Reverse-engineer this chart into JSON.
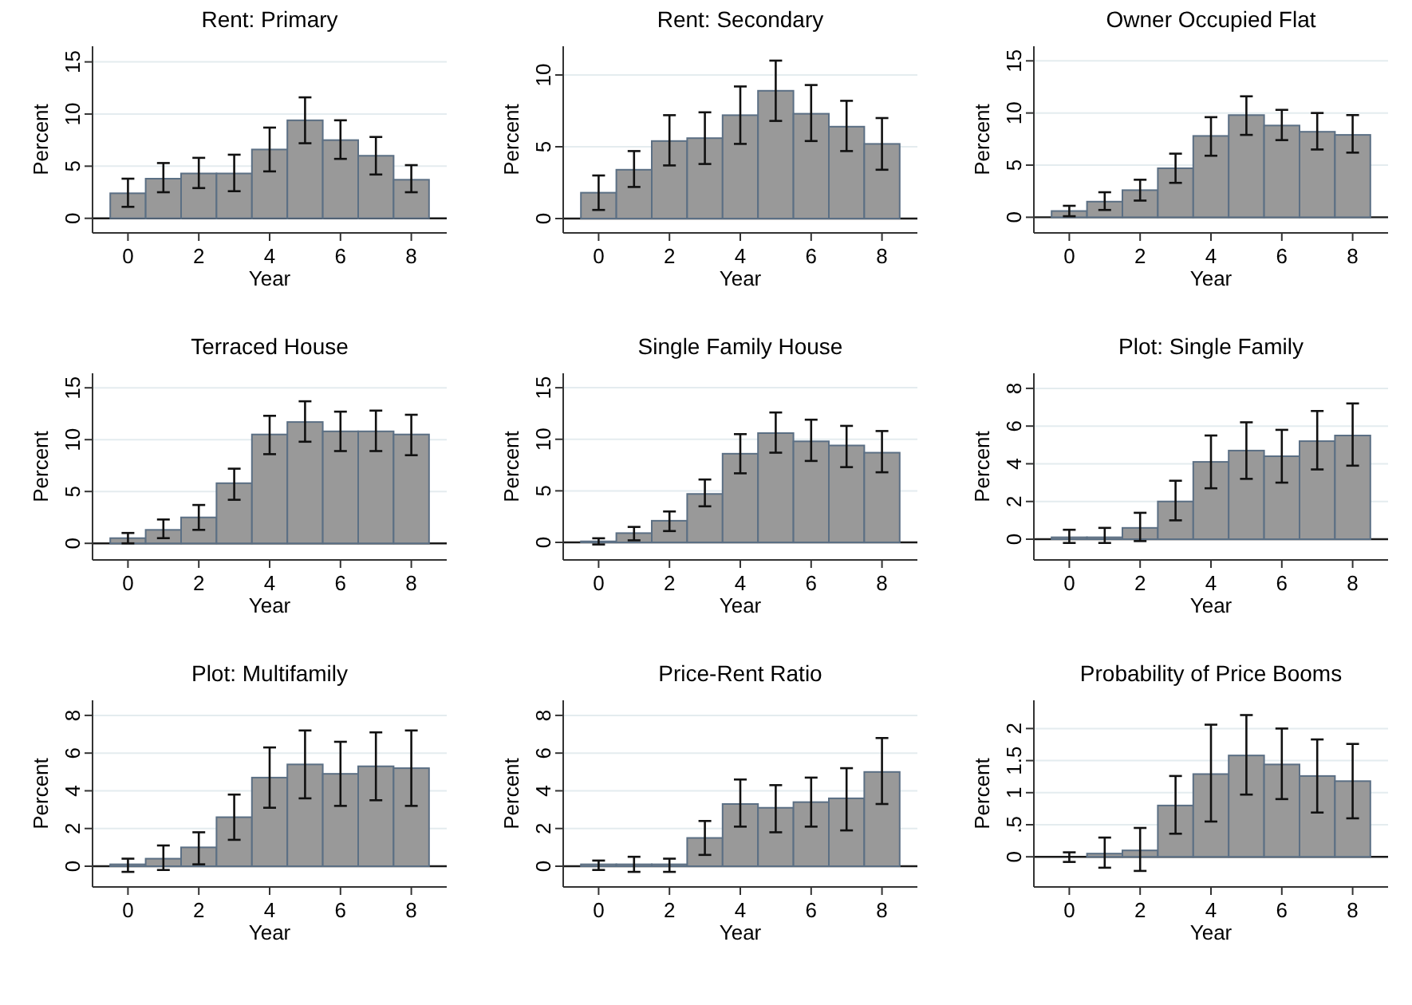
{
  "chart_data": [
    {
      "type": "bar",
      "title": "Rent: Primary",
      "xlabel": "Year",
      "ylabel": "Percent",
      "x": [
        0,
        1,
        2,
        3,
        4,
        5,
        6,
        7,
        8
      ],
      "values": [
        2.4,
        3.8,
        4.3,
        4.3,
        6.6,
        9.4,
        7.5,
        6.0,
        3.7
      ],
      "errors": [
        [
          1.1,
          3.8
        ],
        [
          2.5,
          5.3
        ],
        [
          2.9,
          5.8
        ],
        [
          2.6,
          6.1
        ],
        [
          4.5,
          8.7
        ],
        [
          7.2,
          11.6
        ],
        [
          5.7,
          9.4
        ],
        [
          4.2,
          7.8
        ],
        [
          2.5,
          5.1
        ]
      ],
      "color": "#999999",
      "xlim": [
        -1,
        9
      ],
      "xticks": [
        0,
        2,
        4,
        6,
        8
      ],
      "ylim": [
        -1.4,
        16.5
      ],
      "yticks": [
        0,
        5,
        10,
        15
      ],
      "grid": "y",
      "ref_lines": [
        {
          "axis": "y",
          "value": 0
        }
      ]
    },
    {
      "type": "bar",
      "title": "Rent: Secondary",
      "xlabel": "Year",
      "ylabel": "Percent",
      "x": [
        0,
        1,
        2,
        3,
        4,
        5,
        6,
        7,
        8
      ],
      "values": [
        1.8,
        3.4,
        5.4,
        5.6,
        7.2,
        8.9,
        7.3,
        6.4,
        5.2
      ],
      "errors": [
        [
          0.6,
          3.0
        ],
        [
          2.2,
          4.7
        ],
        [
          3.7,
          7.2
        ],
        [
          3.8,
          7.4
        ],
        [
          5.2,
          9.2
        ],
        [
          6.8,
          11.0
        ],
        [
          5.4,
          9.3
        ],
        [
          4.7,
          8.2
        ],
        [
          3.4,
          7.0
        ]
      ],
      "color": "#999999",
      "xlim": [
        -1,
        9
      ],
      "xticks": [
        0,
        2,
        4,
        6,
        8
      ],
      "ylim": [
        -1.0,
        12.0
      ],
      "yticks": [
        0,
        5,
        10
      ],
      "grid": "y",
      "ref_lines": [
        {
          "axis": "y",
          "value": 0
        }
      ]
    },
    {
      "type": "bar",
      "title": "Owner Occupied Flat",
      "xlabel": "Year",
      "ylabel": "Percent",
      "x": [
        0,
        1,
        2,
        3,
        4,
        5,
        6,
        7,
        8
      ],
      "values": [
        0.6,
        1.5,
        2.6,
        4.7,
        7.8,
        9.8,
        8.8,
        8.2,
        7.9
      ],
      "errors": [
        [
          0.1,
          1.1
        ],
        [
          0.7,
          2.4
        ],
        [
          1.6,
          3.6
        ],
        [
          3.3,
          6.1
        ],
        [
          5.9,
          9.6
        ],
        [
          7.9,
          11.6
        ],
        [
          7.4,
          10.3
        ],
        [
          6.5,
          10.0
        ],
        [
          6.2,
          9.8
        ]
      ],
      "color": "#999999",
      "xlim": [
        -1,
        9
      ],
      "xticks": [
        0,
        2,
        4,
        6,
        8
      ],
      "ylim": [
        -1.5,
        16.4
      ],
      "yticks": [
        0,
        5,
        10,
        15
      ],
      "grid": "y",
      "ref_lines": [
        {
          "axis": "y",
          "value": 0
        }
      ]
    },
    {
      "type": "bar",
      "title": "Terraced House",
      "xlabel": "Year",
      "ylabel": "Percent",
      "x": [
        0,
        1,
        2,
        3,
        4,
        5,
        6,
        7,
        8
      ],
      "values": [
        0.5,
        1.3,
        2.5,
        5.8,
        10.5,
        11.7,
        10.8,
        10.8,
        10.5
      ],
      "errors": [
        [
          0.0,
          1.0
        ],
        [
          0.5,
          2.3
        ],
        [
          1.3,
          3.7
        ],
        [
          4.2,
          7.2
        ],
        [
          8.6,
          12.3
        ],
        [
          9.8,
          13.7
        ],
        [
          8.9,
          12.7
        ],
        [
          8.9,
          12.8
        ],
        [
          8.5,
          12.4
        ]
      ],
      "color": "#999999",
      "xlim": [
        -1,
        9
      ],
      "xticks": [
        0,
        2,
        4,
        6,
        8
      ],
      "ylim": [
        -1.6,
        16.4
      ],
      "yticks": [
        0,
        5,
        10,
        15
      ],
      "grid": "y",
      "ref_lines": [
        {
          "axis": "y",
          "value": 0
        }
      ]
    },
    {
      "type": "bar",
      "title": "Single Family House",
      "xlabel": "Year",
      "ylabel": "Percent",
      "x": [
        0,
        1,
        2,
        3,
        4,
        5,
        6,
        7,
        8
      ],
      "values": [
        0.1,
        0.9,
        2.1,
        4.7,
        8.6,
        10.6,
        9.8,
        9.4,
        8.7
      ],
      "errors": [
        [
          -0.2,
          0.4
        ],
        [
          0.2,
          1.5
        ],
        [
          1.1,
          3.0
        ],
        [
          3.5,
          6.1
        ],
        [
          6.7,
          10.5
        ],
        [
          8.7,
          12.6
        ],
        [
          7.9,
          11.9
        ],
        [
          7.3,
          11.3
        ],
        [
          6.8,
          10.8
        ]
      ],
      "color": "#999999",
      "xlim": [
        -1,
        9
      ],
      "xticks": [
        0,
        2,
        4,
        6,
        8
      ],
      "ylim": [
        -1.7,
        16.4
      ],
      "yticks": [
        0,
        5,
        10,
        15
      ],
      "grid": "y",
      "ref_lines": [
        {
          "axis": "y",
          "value": 0
        }
      ]
    },
    {
      "type": "bar",
      "title": "Plot: Single Family",
      "xlabel": "Year",
      "ylabel": "Percent",
      "x": [
        0,
        1,
        2,
        3,
        4,
        5,
        6,
        7,
        8
      ],
      "values": [
        0.1,
        0.1,
        0.6,
        2.0,
        4.1,
        4.7,
        4.4,
        5.2,
        5.5
      ],
      "errors": [
        [
          -0.2,
          0.5
        ],
        [
          -0.2,
          0.6
        ],
        [
          -0.1,
          1.4
        ],
        [
          1.0,
          3.1
        ],
        [
          2.7,
          5.5
        ],
        [
          3.2,
          6.2
        ],
        [
          3.0,
          5.8
        ],
        [
          3.7,
          6.8
        ],
        [
          3.9,
          7.2
        ]
      ],
      "color": "#999999",
      "xlim": [
        -1,
        9
      ],
      "xticks": [
        0,
        2,
        4,
        6,
        8
      ],
      "ylim": [
        -1.1,
        8.8
      ],
      "yticks": [
        0,
        2,
        4,
        6,
        8
      ],
      "grid": "y",
      "ref_lines": [
        {
          "axis": "y",
          "value": 0
        }
      ]
    },
    {
      "type": "bar",
      "title": "Plot: Multifamily",
      "xlabel": "Year",
      "ylabel": "Percent",
      "x": [
        0,
        1,
        2,
        3,
        4,
        5,
        6,
        7,
        8
      ],
      "values": [
        0.1,
        0.4,
        1.0,
        2.6,
        4.7,
        5.4,
        4.9,
        5.3,
        5.2
      ],
      "errors": [
        [
          -0.3,
          0.4
        ],
        [
          -0.2,
          1.1
        ],
        [
          0.1,
          1.8
        ],
        [
          1.4,
          3.8
        ],
        [
          3.1,
          6.3
        ],
        [
          3.6,
          7.2
        ],
        [
          3.2,
          6.6
        ],
        [
          3.5,
          7.1
        ],
        [
          3.2,
          7.2
        ]
      ],
      "color": "#999999",
      "xlim": [
        -1,
        9
      ],
      "xticks": [
        0,
        2,
        4,
        6,
        8
      ],
      "ylim": [
        -1.1,
        8.8
      ],
      "yticks": [
        0,
        2,
        4,
        6,
        8
      ],
      "grid": "y",
      "ref_lines": [
        {
          "axis": "y",
          "value": 0
        }
      ]
    },
    {
      "type": "bar",
      "title": "Price-Rent Ratio",
      "xlabel": "Year",
      "ylabel": "Percent",
      "x": [
        0,
        1,
        2,
        3,
        4,
        5,
        6,
        7,
        8
      ],
      "values": [
        0.1,
        0.1,
        0.1,
        1.5,
        3.3,
        3.1,
        3.4,
        3.6,
        5.0
      ],
      "errors": [
        [
          -0.2,
          0.3
        ],
        [
          -0.3,
          0.5
        ],
        [
          -0.3,
          0.4
        ],
        [
          0.6,
          2.4
        ],
        [
          2.1,
          4.6
        ],
        [
          1.8,
          4.3
        ],
        [
          2.1,
          4.7
        ],
        [
          1.9,
          5.2
        ],
        [
          3.3,
          6.8
        ]
      ],
      "color": "#999999",
      "xlim": [
        -1,
        9
      ],
      "xticks": [
        0,
        2,
        4,
        6,
        8
      ],
      "ylim": [
        -1.1,
        8.8
      ],
      "yticks": [
        0,
        2,
        4,
        6,
        8
      ],
      "grid": "y",
      "ref_lines": [
        {
          "axis": "y",
          "value": 0
        }
      ]
    },
    {
      "type": "bar",
      "title": "Probability of Price Booms",
      "xlabel": "Year",
      "ylabel": "Percent",
      "x": [
        0,
        1,
        2,
        3,
        4,
        5,
        6,
        7,
        8
      ],
      "values": [
        0.0,
        0.05,
        0.1,
        0.8,
        1.29,
        1.58,
        1.44,
        1.26,
        1.18
      ],
      "errors": [
        [
          -0.08,
          0.07
        ],
        [
          -0.17,
          0.3
        ],
        [
          -0.22,
          0.45
        ],
        [
          0.36,
          1.26
        ],
        [
          0.55,
          2.06
        ],
        [
          0.97,
          2.21
        ],
        [
          0.9,
          2.0
        ],
        [
          0.69,
          1.83
        ],
        [
          0.6,
          1.76
        ]
      ],
      "color": "#999999",
      "xlim": [
        -1,
        9
      ],
      "xticks": [
        0,
        2,
        4,
        6,
        8
      ],
      "ylim": [
        -0.47,
        2.44
      ],
      "yticks": [
        0,
        {
          "value": 0.5,
          "label": ".5"
        },
        1,
        {
          "value": 1.5,
          "label": "1.5"
        },
        2
      ],
      "grid": "y",
      "ref_lines": [
        {
          "axis": "y",
          "value": 0
        }
      ]
    }
  ]
}
